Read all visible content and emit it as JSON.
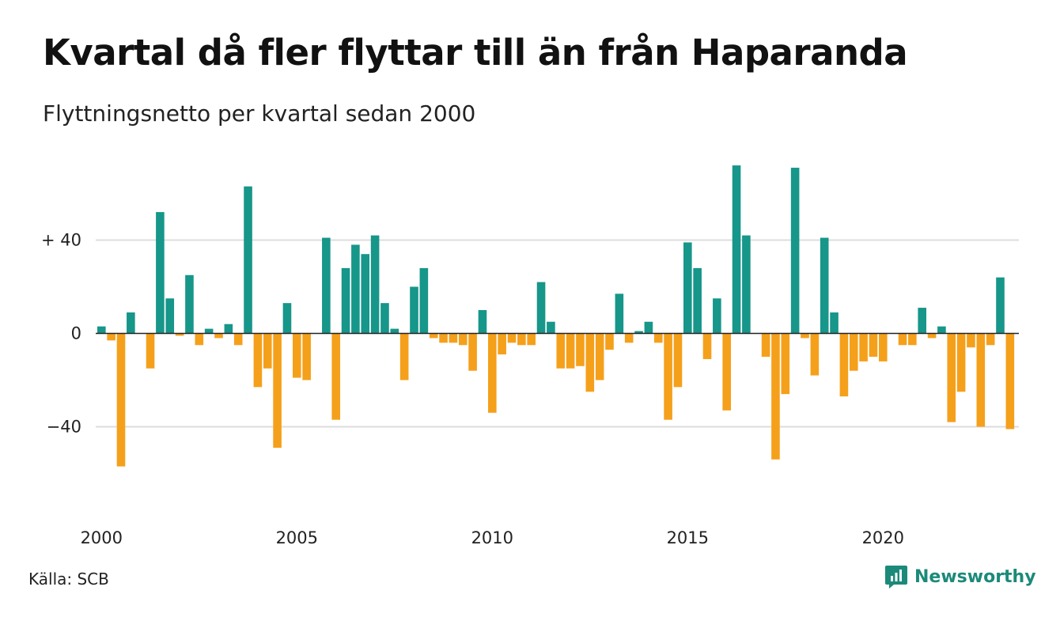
{
  "title": "Kvartal då fler flyttar till än från Haparanda",
  "subtitle": "Flyttningsnetto per kvartal sedan 2000",
  "source": "Källa: SCB",
  "brand": "Newsworthy",
  "colors": {
    "positive": "#17968a",
    "negative": "#f5a01b",
    "grid": "#dddddd",
    "brand": "#1b8a7a"
  },
  "chart_data": {
    "type": "bar",
    "title": "Kvartal då fler flyttar till än från Haparanda",
    "subtitle": "Flyttningsnetto per kvartal sedan 2000",
    "xlabel": "",
    "ylabel": "",
    "ylim": [
      -75,
      72
    ],
    "yticks": [
      {
        "value": 40,
        "label": "+ 40"
      },
      {
        "value": 0,
        "label": "0"
      },
      {
        "value": -40,
        "label": "−40"
      }
    ],
    "xticks": [
      {
        "value": 2000,
        "label": "2000"
      },
      {
        "value": 2005,
        "label": "2005"
      },
      {
        "value": 2010,
        "label": "2010"
      },
      {
        "value": 2015,
        "label": "2015"
      },
      {
        "value": 2020,
        "label": "2020"
      }
    ],
    "grid": true,
    "start_year": 2000,
    "start_quarter": 1,
    "values": [
      3,
      -3,
      -57,
      9,
      0,
      -15,
      52,
      15,
      -1,
      25,
      -5,
      2,
      -2,
      4,
      -5,
      63,
      -23,
      -15,
      -49,
      13,
      -19,
      -20,
      0,
      41,
      -37,
      28,
      38,
      34,
      42,
      13,
      2,
      -20,
      20,
      28,
      -2,
      -4,
      -4,
      -5,
      -16,
      10,
      -34,
      -9,
      -4,
      -5,
      -5,
      22,
      5,
      -15,
      -15,
      -14,
      -25,
      -20,
      -7,
      17,
      -4,
      1,
      5,
      -4,
      -37,
      -23,
      39,
      28,
      -11,
      15,
      -33,
      72,
      42,
      0,
      -10,
      -54,
      -26,
      71,
      -2,
      -18,
      41,
      9,
      -27,
      -16,
      -12,
      -10,
      -12,
      0,
      -5,
      -5,
      11,
      -2,
      3,
      -38,
      -25,
      -6,
      -40,
      -5,
      24,
      -41
    ]
  }
}
